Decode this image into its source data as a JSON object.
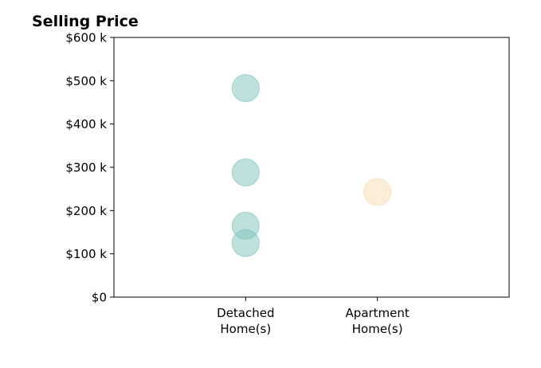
{
  "chart_data": {
    "type": "scatter",
    "title": "Selling Price",
    "xlabel": "",
    "ylabel": "",
    "categories": [
      "Detached\nHome(s)",
      "Apartment\nHome(s)"
    ],
    "xlim": [
      0,
      3
    ],
    "ylim": [
      0,
      600
    ],
    "yticks": [
      0,
      100,
      200,
      300,
      400,
      500,
      600
    ],
    "ytick_labels": [
      "$0",
      "$100 k",
      "$200 k",
      "$300 k",
      "$400 k",
      "$500 k",
      "$600 k"
    ],
    "grid": false,
    "series": [
      {
        "category_index": 0,
        "color": "#80c4bc",
        "values": [
          483,
          288,
          165,
          125
        ]
      },
      {
        "category_index": 1,
        "color": "#f5deb3",
        "values": [
          243
        ]
      }
    ]
  }
}
